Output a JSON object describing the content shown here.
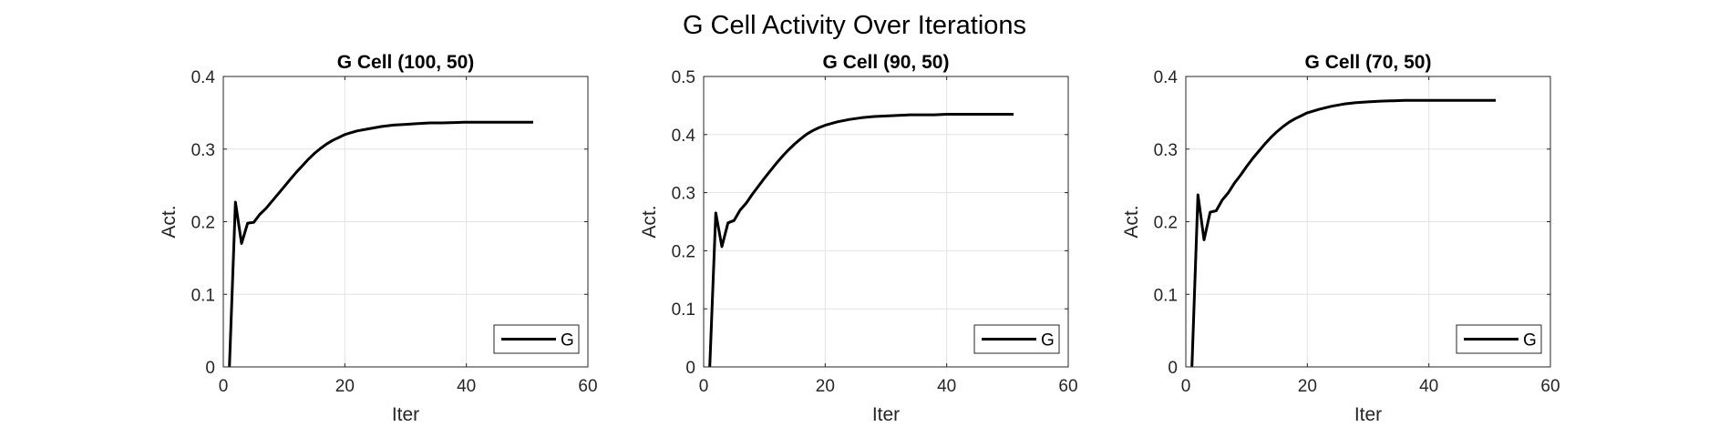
{
  "figure": {
    "title": "G Cell Activity Over Iterations"
  },
  "chart_data": [
    {
      "type": "line",
      "title": "G Cell (100, 50)",
      "xlabel": "Iter",
      "ylabel": "Act.",
      "xlim": [
        0,
        60
      ],
      "ylim": [
        0,
        0.4
      ],
      "xticks": [
        0,
        20,
        40,
        60
      ],
      "yticks": [
        0,
        0.1,
        0.2,
        0.3,
        0.4
      ],
      "xtick_labels": [
        "0",
        "20",
        "40",
        "60"
      ],
      "ytick_labels": [
        "0",
        "0.1",
        "0.2",
        "0.3",
        "0.4"
      ],
      "grid": true,
      "legend_position": "bottom-right",
      "series": [
        {
          "name": "G",
          "color": "#000000",
          "x": [
            1,
            2,
            3,
            4,
            5,
            6,
            7,
            8,
            9,
            10,
            11,
            12,
            13,
            14,
            15,
            16,
            17,
            18,
            19,
            20,
            22,
            24,
            26,
            28,
            30,
            32,
            34,
            36,
            38,
            40,
            45,
            51
          ],
          "y": [
            0,
            0.227,
            0.17,
            0.198,
            0.199,
            0.21,
            0.218,
            0.228,
            0.238,
            0.248,
            0.258,
            0.268,
            0.277,
            0.286,
            0.294,
            0.301,
            0.307,
            0.312,
            0.316,
            0.32,
            0.325,
            0.328,
            0.331,
            0.333,
            0.334,
            0.335,
            0.336,
            0.336,
            0.3365,
            0.337,
            0.337,
            0.337
          ]
        }
      ]
    },
    {
      "type": "line",
      "title": "G Cell (90, 50)",
      "xlabel": "Iter",
      "ylabel": "Act.",
      "xlim": [
        0,
        60
      ],
      "ylim": [
        0,
        0.5
      ],
      "xticks": [
        0,
        20,
        40,
        60
      ],
      "yticks": [
        0,
        0.1,
        0.2,
        0.3,
        0.4,
        0.5
      ],
      "xtick_labels": [
        "0",
        "20",
        "40",
        "60"
      ],
      "ytick_labels": [
        "0",
        "0.1",
        "0.2",
        "0.3",
        "0.4",
        "0.5"
      ],
      "grid": true,
      "legend_position": "bottom-right",
      "series": [
        {
          "name": "G",
          "color": "#000000",
          "x": [
            1,
            2,
            3,
            4,
            5,
            6,
            7,
            8,
            9,
            10,
            11,
            12,
            13,
            14,
            15,
            16,
            17,
            18,
            19,
            20,
            22,
            24,
            26,
            28,
            30,
            32,
            34,
            36,
            38,
            40,
            45,
            51
          ],
          "y": [
            0,
            0.265,
            0.207,
            0.248,
            0.252,
            0.27,
            0.282,
            0.297,
            0.311,
            0.325,
            0.338,
            0.351,
            0.363,
            0.374,
            0.384,
            0.393,
            0.401,
            0.407,
            0.412,
            0.416,
            0.422,
            0.426,
            0.429,
            0.431,
            0.432,
            0.433,
            0.434,
            0.434,
            0.434,
            0.435,
            0.435,
            0.435
          ]
        }
      ]
    },
    {
      "type": "line",
      "title": "G Cell (70, 50)",
      "xlabel": "Iter",
      "ylabel": "Act.",
      "xlim": [
        0,
        60
      ],
      "ylim": [
        0,
        0.4
      ],
      "xticks": [
        0,
        20,
        40,
        60
      ],
      "yticks": [
        0,
        0.1,
        0.2,
        0.3,
        0.4
      ],
      "xtick_labels": [
        "0",
        "20",
        "40",
        "60"
      ],
      "ytick_labels": [
        "0",
        "0.1",
        "0.2",
        "0.3",
        "0.4"
      ],
      "grid": true,
      "legend_position": "bottom-right",
      "series": [
        {
          "name": "G",
          "color": "#000000",
          "x": [
            1,
            2,
            3,
            4,
            5,
            6,
            7,
            8,
            9,
            10,
            11,
            12,
            13,
            14,
            15,
            16,
            17,
            18,
            19,
            20,
            22,
            24,
            26,
            28,
            30,
            32,
            34,
            36,
            38,
            40,
            45,
            51
          ],
          "y": [
            0,
            0.237,
            0.175,
            0.213,
            0.215,
            0.23,
            0.24,
            0.253,
            0.264,
            0.276,
            0.287,
            0.297,
            0.307,
            0.316,
            0.324,
            0.331,
            0.337,
            0.342,
            0.346,
            0.35,
            0.355,
            0.359,
            0.362,
            0.364,
            0.365,
            0.366,
            0.3665,
            0.367,
            0.367,
            0.367,
            0.367,
            0.367
          ]
        }
      ]
    }
  ]
}
